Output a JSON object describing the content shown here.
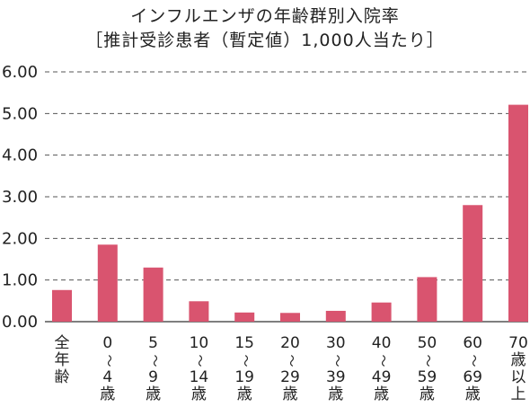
{
  "chart_data": {
    "type": "bar",
    "title": "インフルエンザの年齢群別入院率",
    "subtitle": "［推計受診患者（暫定値）1,000人当たり］",
    "xlabel": "",
    "ylabel": "",
    "ylim": [
      0,
      6
    ],
    "yticks": [
      "0.00",
      "1.00",
      "2.00",
      "3.00",
      "4.00",
      "5.00",
      "6.00"
    ],
    "grid": true,
    "categories": [
      [
        "全",
        "年",
        "齢"
      ],
      [
        "0",
        "〜",
        "4",
        "歳"
      ],
      [
        "5",
        "〜",
        "9",
        "歳"
      ],
      [
        "10",
        "〜",
        "14",
        "歳"
      ],
      [
        "15",
        "〜",
        "19",
        "歳"
      ],
      [
        "20",
        "〜",
        "29",
        "歳"
      ],
      [
        "30",
        "〜",
        "39",
        "歳"
      ],
      [
        "40",
        "〜",
        "49",
        "歳"
      ],
      [
        "50",
        "〜",
        "59",
        "歳"
      ],
      [
        "60",
        "〜",
        "69",
        "歳"
      ],
      [
        "70",
        "歳",
        "以",
        "上"
      ]
    ],
    "values": [
      0.76,
      1.85,
      1.3,
      0.49,
      0.22,
      0.21,
      0.26,
      0.46,
      1.07,
      2.8,
      5.21
    ],
    "bar_color": "#d9546f"
  }
}
